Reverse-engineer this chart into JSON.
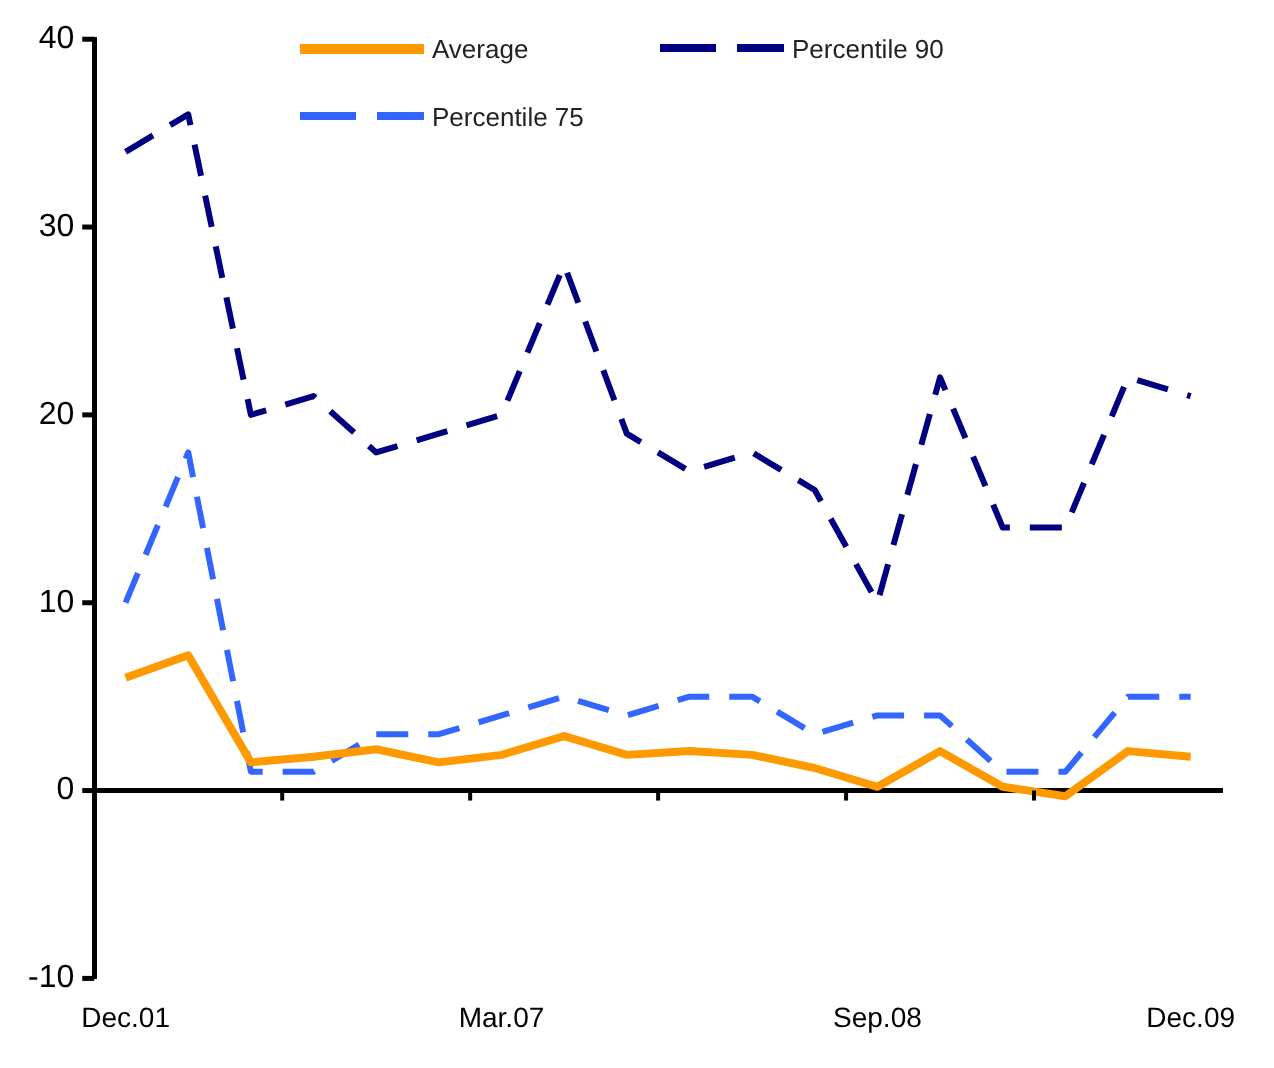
{
  "chart_data": {
    "type": "line",
    "categories": [
      "Dec.01",
      null,
      null,
      null,
      null,
      null,
      "Mar.07",
      null,
      null,
      null,
      null,
      null,
      "Sep.08",
      null,
      null,
      null,
      null,
      "Dec.09"
    ],
    "series": [
      {
        "name": "Average",
        "color": "#ff9900",
        "line_style": "solid",
        "values": [
          6,
          7.2,
          1.5,
          1.8,
          2.2,
          1.5,
          1.9,
          2.9,
          1.9,
          2.1,
          1.9,
          1.2,
          0.2,
          2.1,
          0.2,
          -0.3,
          2.1,
          1.8
        ]
      },
      {
        "name": "Percentile 90",
        "color": "#000080",
        "line_style": "dashed",
        "values": [
          34,
          36,
          20,
          21,
          18,
          19,
          20,
          28,
          19,
          17,
          18,
          16,
          10,
          22,
          14,
          14,
          22,
          21
        ]
      },
      {
        "name": "Percentile 75",
        "color": "#3366ff",
        "line_style": "dashed",
        "values": [
          10,
          18,
          1,
          1,
          3,
          3,
          4,
          5,
          4,
          5,
          5,
          3,
          4,
          4,
          1,
          1,
          5,
          5
        ]
      }
    ],
    "ylim": [
      -10,
      40
    ],
    "yticks": [
      -10,
      0,
      10,
      20,
      30,
      40
    ],
    "legend": "top",
    "marker": "none"
  }
}
